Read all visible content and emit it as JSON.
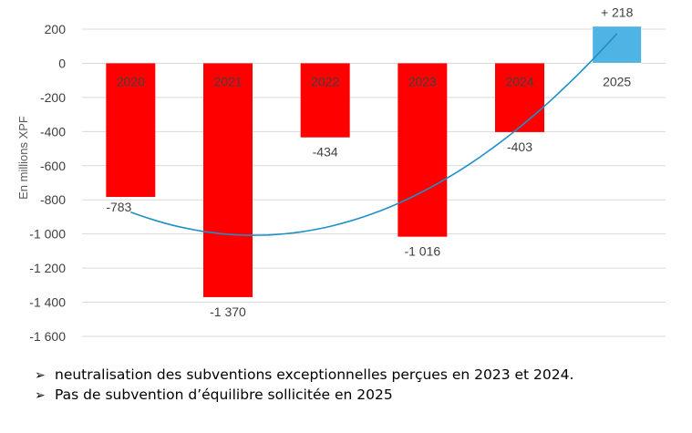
{
  "chart_data": {
    "type": "bar",
    "title": "",
    "xlabel": "",
    "ylabel": "En millions XPF",
    "ylim": [
      -1600,
      200
    ],
    "yticks": [
      200,
      0,
      -200,
      -400,
      -600,
      -800,
      -1000,
      -1200,
      -1400,
      -1600
    ],
    "ytick_labels": [
      "200",
      "0",
      "-200",
      "-400",
      "-600",
      "-800",
      "-1 000",
      "-1 200",
      "-1 400",
      "-1 600"
    ],
    "grid": true,
    "legend": "none",
    "categories": [
      "2020",
      "2021",
      "2022",
      "2023",
      "2024",
      "2025"
    ],
    "values": [
      -783,
      -1370,
      -434,
      -1016,
      -403,
      218
    ],
    "data_labels": [
      "-783",
      "-1 370",
      "-434",
      "-1 016",
      "-403",
      "+ 218"
    ],
    "bar_colors": [
      "#ff0000",
      "#ff0000",
      "#ff0000",
      "#ff0000",
      "#ff0000",
      "#4fb3e3"
    ],
    "trendline": {
      "type": "polynomial",
      "color": "#1e90c8"
    }
  },
  "notes": [
    {
      "icon": "arrow-bullet-icon",
      "text": "neutralisation des subventions exceptionnelles perçues en 2023 et 2024."
    },
    {
      "icon": "arrow-bullet-icon",
      "text": "Pas de subvention d’équilibre sollicitée en 2025"
    }
  ]
}
